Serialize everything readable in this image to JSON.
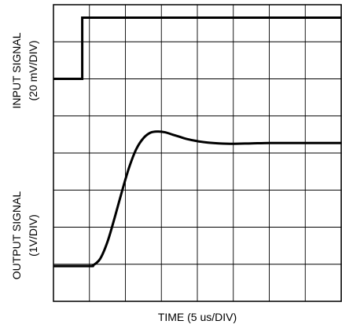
{
  "chart_data": {
    "type": "line",
    "title": "",
    "xlabel": "TIME (5 us/DIV)",
    "ylabel_top": [
      "INPUT SIGNAL",
      "(20 mV/DIV)"
    ],
    "ylabel_bottom": [
      "OUTPUT SIGNAL",
      "(1V/DIV)"
    ],
    "x_divisions": 8,
    "y_divisions": 8,
    "grid": true,
    "xlim_div": [
      0,
      8
    ],
    "ylim_div": [
      0,
      8
    ],
    "series": [
      {
        "x_div": [
          0,
          0.8,
          0.8,
          8
        ],
        "y_div": [
          6.0,
          6.0,
          7.65,
          7.65
        ]
      },
      {
        "x_div": [
          0,
          1.0,
          1.1,
          1.3,
          1.5,
          1.7,
          1.9,
          2.1,
          2.3,
          2.5,
          2.7,
          2.9,
          3.1,
          3.3,
          3.5,
          3.7,
          4.0,
          4.3,
          4.6,
          5.0,
          5.5,
          6.0,
          6.5,
          7.0,
          7.5,
          8.0
        ],
        "y_div": [
          0.95,
          0.95,
          0.97,
          1.15,
          1.6,
          2.25,
          2.95,
          3.6,
          4.1,
          4.4,
          4.55,
          4.58,
          4.56,
          4.5,
          4.44,
          4.38,
          4.32,
          4.28,
          4.26,
          4.25,
          4.26,
          4.27,
          4.27,
          4.27,
          4.27,
          4.27
        ]
      }
    ]
  }
}
